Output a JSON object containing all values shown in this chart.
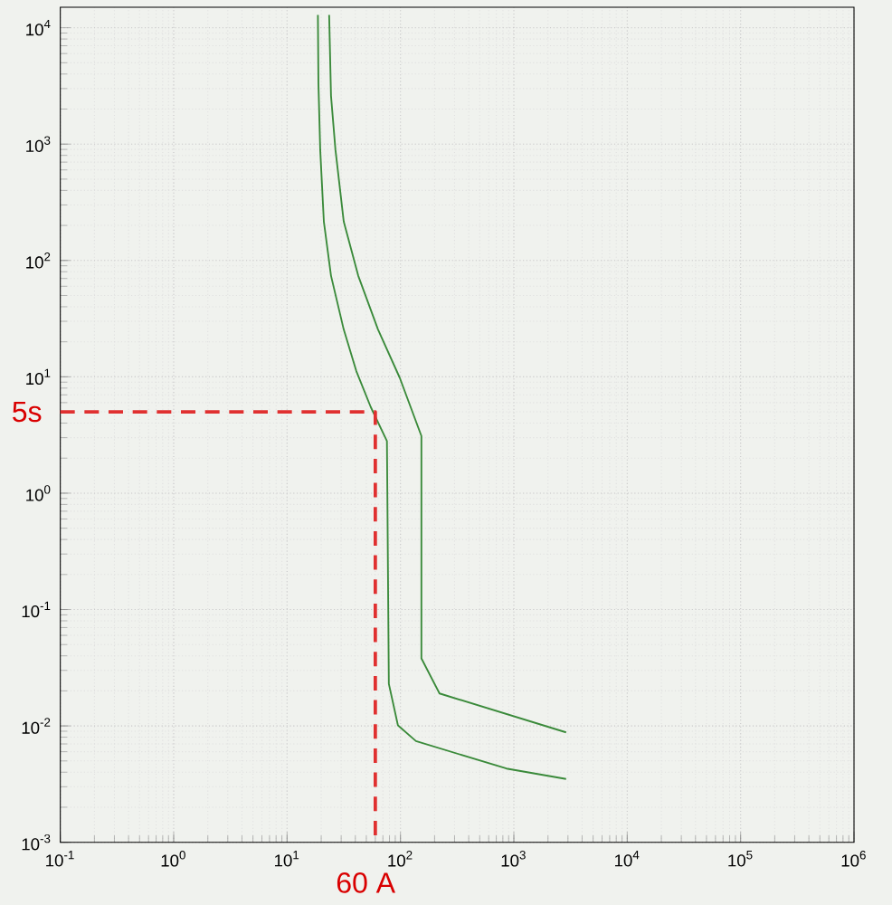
{
  "chart_data": {
    "type": "line",
    "log": "xy",
    "grid": true,
    "marker": "none",
    "xlim": [
      0.1,
      1000000
    ],
    "ylim": [
      0.001,
      15000
    ],
    "xticks": [
      {
        "value": 0.1,
        "label": "10$^{-1}$"
      },
      {
        "value": 1,
        "label": "10$^{0}$"
      },
      {
        "value": 10,
        "label": "10$^{1}$"
      },
      {
        "value": 100,
        "label": "10$^{2}$"
      },
      {
        "value": 1000,
        "label": "10$^{3}$"
      },
      {
        "value": 10000,
        "label": "10$^{4}$"
      },
      {
        "value": 100000,
        "label": "10$^{5}$"
      },
      {
        "value": 1000000,
        "label": "10$^{6}$"
      }
    ],
    "yticks": [
      {
        "value": 0.001,
        "label": "10$^{-3}$"
      },
      {
        "value": 0.01,
        "label": "10$^{-2}$"
      },
      {
        "value": 0.1,
        "label": "10$^{-1}$"
      },
      {
        "value": 1,
        "label": "10$^{0}$"
      },
      {
        "value": 10,
        "label": "10$^{1}$"
      },
      {
        "value": 100,
        "label": "10$^{2}$"
      },
      {
        "value": 1000,
        "label": "10$^{3}$"
      },
      {
        "value": 10000,
        "label": "10$^{4}$"
      }
    ],
    "series": [
      {
        "color": "#3a8a3a",
        "line_style": "solid",
        "x": [
          18.7,
          18.9,
          19.6,
          21.1,
          24.4,
          31.6,
          40.8,
          54.7,
          76,
          79,
          95,
          137,
          860,
          2890
        ],
        "values": [
          12900,
          3340,
          895,
          216,
          74,
          25.5,
          11.2,
          5.5,
          2.8,
          0.023,
          0.0101,
          0.0074,
          0.0043,
          0.0035
        ]
      },
      {
        "color": "#3a8a3a",
        "line_style": "solid",
        "x": [
          23.5,
          24.4,
          26.7,
          31.6,
          42.4,
          63.4,
          98.6,
          153,
          153,
          221,
          2890
        ],
        "values": [
          12900,
          2600,
          895,
          216,
          74,
          25.5,
          9.8,
          3.1,
          0.038,
          0.019,
          0.0088
        ]
      },
      {
        "color": "#e03030",
        "line_style": "dashed",
        "x": [
          0.1,
          60,
          60
        ],
        "values": [
          5,
          5,
          0.001
        ]
      }
    ],
    "annotations": [
      {
        "text": "5s",
        "x": 0.1,
        "y": 5
      },
      {
        "text": "60 A",
        "x": 60,
        "y": 0.001
      }
    ]
  }
}
